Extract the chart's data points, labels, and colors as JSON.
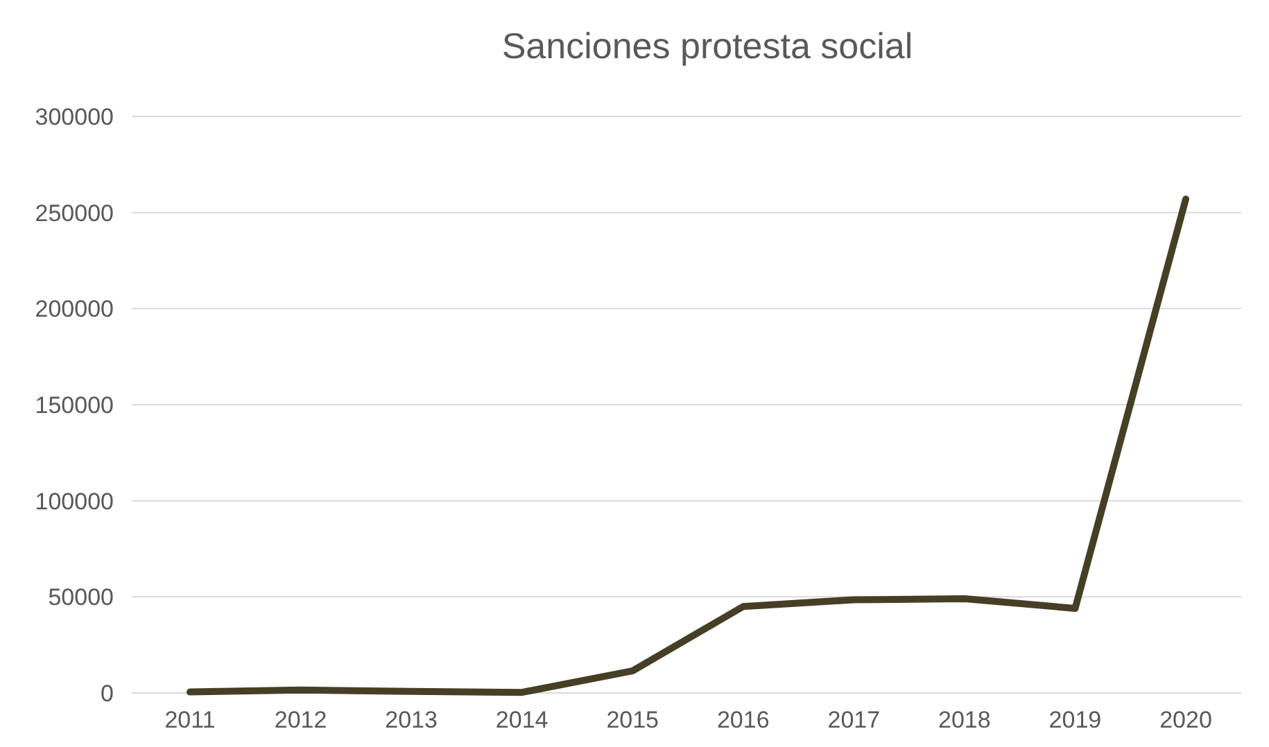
{
  "chart_data": {
    "type": "line",
    "title": "Sanciones protesta social",
    "categories": [
      "2011",
      "2012",
      "2013",
      "2014",
      "2015",
      "2016",
      "2017",
      "2018",
      "2019",
      "2020"
    ],
    "series": [
      {
        "color": "#463f26",
        "values": [
          500,
          1500,
          800,
          300,
          11500,
          45000,
          48500,
          49000,
          44000,
          257000
        ]
      }
    ],
    "ylim": [
      0,
      300000
    ],
    "yticks": [
      0,
      50000,
      100000,
      150000,
      200000,
      250000,
      300000
    ],
    "grid": "y",
    "marker": "none",
    "line_style": "solid"
  }
}
